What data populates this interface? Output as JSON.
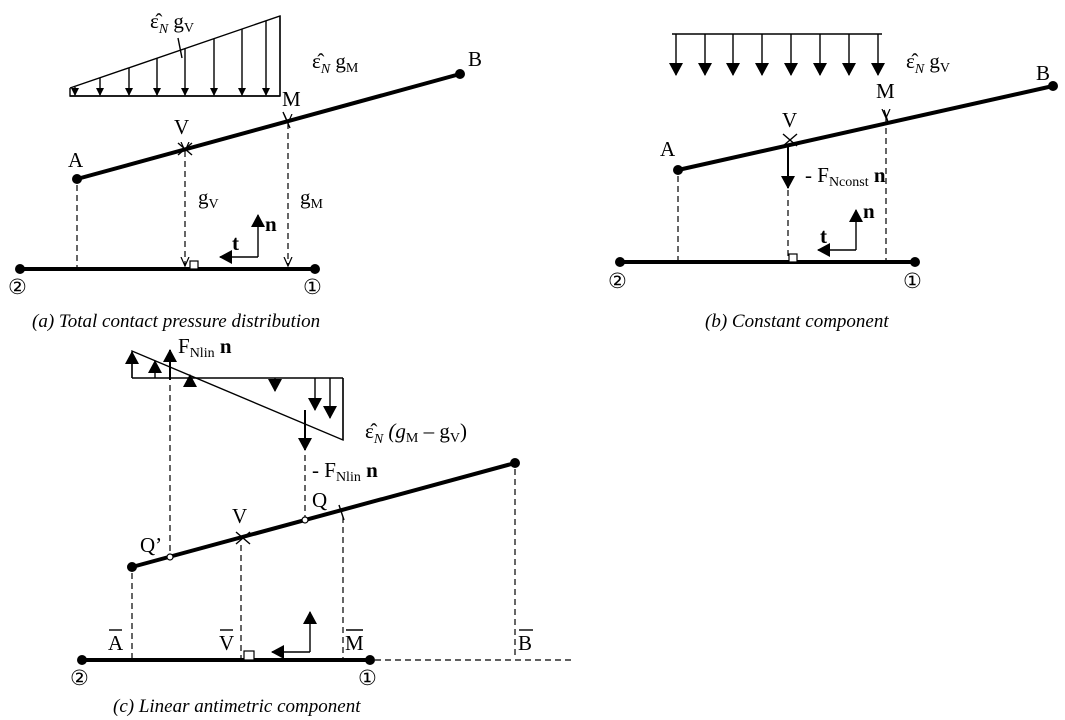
{
  "panel_a": {
    "caption": "(a) Total contact pressure distribution",
    "label_A": "A",
    "label_B": "B",
    "label_V": "V",
    "label_M": "M",
    "label_t": "t",
    "label_n": "n",
    "gap_V": "g",
    "gap_V_sub": "V",
    "gap_M": "g",
    "gap_M_sub": "M",
    "load_V_eps": "ε̂",
    "load_V_eps_sub": "N",
    "load_V_g": "g",
    "load_V_g_sub": "V",
    "load_M_eps": "ε̂",
    "load_M_eps_sub": "N",
    "load_M_g": "g",
    "load_M_g_sub": "M",
    "node_2": "②",
    "node_1": "①"
  },
  "panel_b": {
    "caption": "(b) Constant component",
    "label_A": "A",
    "label_B": "B",
    "label_V": "V",
    "label_M": "M",
    "label_t": "t",
    "label_n": "n",
    "force_prefix": "- F",
    "force_sub": "Nconst",
    "force_vec": "n",
    "load_eps": "ε̂",
    "load_eps_sub": "N",
    "load_g": "g",
    "load_g_sub": "V",
    "node_2": "②",
    "node_1": "①"
  },
  "panel_c": {
    "caption": "(c) Linear antimetric component",
    "label_Qp": "Q’",
    "label_V": "V",
    "label_Q": "Q",
    "label_Abar": "A",
    "label_Vbar": "V",
    "label_Mbar": "M",
    "label_Bbar": "B",
    "force_up_prefix": "F",
    "force_up_sub": "Nlin",
    "force_up_vec": "n",
    "force_down_prefix": "- F",
    "force_down_sub": "Nlin",
    "force_down_vec": "n",
    "load_eps": "ε̂",
    "load_eps_sub": "N",
    "load_open": "(g",
    "load_M_sub": "M",
    "load_minus": " – g",
    "load_V_sub": "V",
    "load_close": ")",
    "node_2": "②",
    "node_1": "①"
  }
}
